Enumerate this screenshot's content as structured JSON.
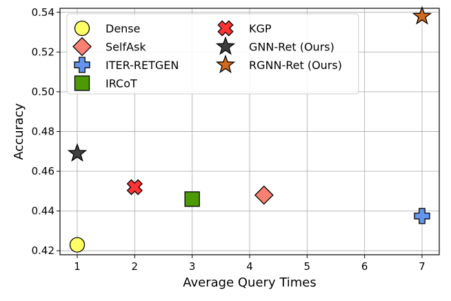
{
  "chart_data": {
    "type": "scatter",
    "title": "",
    "xlabel": "Average Query Times",
    "ylabel": "Accuracy",
    "xlim": [
      0.7,
      7.3
    ],
    "ylim": [
      0.418,
      0.542
    ],
    "xticks": [
      1,
      2,
      3,
      4,
      5,
      6,
      7
    ],
    "yticks": [
      0.42,
      0.44,
      0.46,
      0.48,
      0.5,
      0.52,
      0.54
    ],
    "ytick_labels": [
      "0.42",
      "0.44",
      "0.46",
      "0.48",
      "0.50",
      "0.52",
      "0.54"
    ],
    "grid": true,
    "legend_position": "top",
    "series": [
      {
        "name": "Dense",
        "marker": "circle",
        "color": "#ffff66",
        "x": 1,
        "y": 0.423
      },
      {
        "name": "SelfAsk",
        "marker": "diamond",
        "color": "#fa8072",
        "x": 4.25,
        "y": 0.448
      },
      {
        "name": "ITER-RETGEN",
        "marker": "plus",
        "color": "#6495ed",
        "x": 7,
        "y": 0.4375
      },
      {
        "name": "IRCoT",
        "marker": "square",
        "color": "#4e9a06",
        "x": 3,
        "y": 0.446
      },
      {
        "name": "KGP",
        "marker": "x",
        "color": "#ff3333",
        "x": 2,
        "y": 0.452
      },
      {
        "name": "GNN-Ret (Ours)",
        "marker": "star",
        "color": "#404040",
        "x": 1,
        "y": 0.469
      },
      {
        "name": "RGNN-Ret (Ours)",
        "marker": "star",
        "color": "#d2691e",
        "x": 7,
        "y": 0.538
      }
    ]
  }
}
